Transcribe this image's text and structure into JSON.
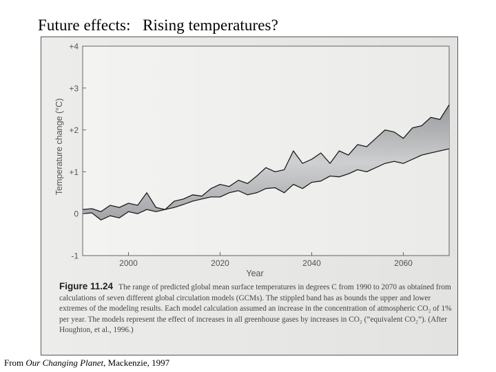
{
  "slide": {
    "title": "Future effects:   Rising temperatures?",
    "credit_prefix": "From ",
    "credit_title": "Our Changing Planet",
    "credit_suffix": ", Mackenzie, 1997"
  },
  "figure": {
    "label": "Figure 11.24",
    "caption": "The range of predicted global mean surface temperatures in degrees C from 1990 to 2070 as obtained from calculations of seven different global circulation models (GCMs). The stippled band has as bounds the upper and lower extremes of the modeling results. Each model calculation assumed an increase in the concentration of atmospheric CO₂ of 1% per year. The models represent the effect of increases in all greenhouse gases by increases in CO₂ (“equivalent CO₂”). (After Houghton, et al., 1996.)"
  },
  "chart_data": {
    "type": "area",
    "title": "",
    "xlabel": "Year",
    "ylabel": "Temperature change (°C)",
    "xlim": [
      1990,
      2070
    ],
    "ylim": [
      -1,
      4
    ],
    "xticks": [
      2000,
      2020,
      2040,
      2060
    ],
    "xtick_labels": [
      "2000",
      "2020",
      "2040",
      "2060"
    ],
    "yticks": [
      4,
      3,
      2,
      1,
      0,
      -1
    ],
    "ytick_labels": [
      "+4",
      "+3",
      "+2",
      "+1",
      "0",
      "-1"
    ],
    "grid": false,
    "legend": "none",
    "x": [
      1990,
      1992,
      1994,
      1996,
      1998,
      2000,
      2002,
      2004,
      2006,
      2008,
      2010,
      2012,
      2014,
      2016,
      2018,
      2020,
      2022,
      2024,
      2026,
      2028,
      2030,
      2032,
      2034,
      2036,
      2038,
      2040,
      2042,
      2044,
      2046,
      2048,
      2050,
      2052,
      2054,
      2056,
      2058,
      2060,
      2062,
      2064,
      2066,
      2068,
      2070
    ],
    "series": [
      {
        "values": [
          0.1,
          0.12,
          0.05,
          0.2,
          0.15,
          0.25,
          0.2,
          0.5,
          0.15,
          0.1,
          0.3,
          0.35,
          0.45,
          0.42,
          0.6,
          0.7,
          0.65,
          0.8,
          0.72,
          0.9,
          1.1,
          1.0,
          1.05,
          1.5,
          1.2,
          1.3,
          1.45,
          1.2,
          1.5,
          1.4,
          1.65,
          1.6,
          1.8,
          2.0,
          1.95,
          1.8,
          2.05,
          2.1,
          2.3,
          2.25,
          2.6
        ]
      },
      {
        "values": [
          0.0,
          0.02,
          -0.15,
          -0.05,
          -0.1,
          0.05,
          0.0,
          0.1,
          0.05,
          0.1,
          0.15,
          0.22,
          0.3,
          0.35,
          0.4,
          0.4,
          0.5,
          0.55,
          0.45,
          0.5,
          0.6,
          0.62,
          0.5,
          0.7,
          0.6,
          0.75,
          0.78,
          0.9,
          0.88,
          0.95,
          1.05,
          1.0,
          1.1,
          1.2,
          1.25,
          1.2,
          1.3,
          1.4,
          1.45,
          1.5,
          1.55
        ]
      }
    ]
  },
  "colors": {
    "band_fill": "#b9bbbd",
    "band_edge": "#1c1c1c",
    "axis": "#666666",
    "tick_text": "#555555",
    "caption_text": "#444444"
  }
}
